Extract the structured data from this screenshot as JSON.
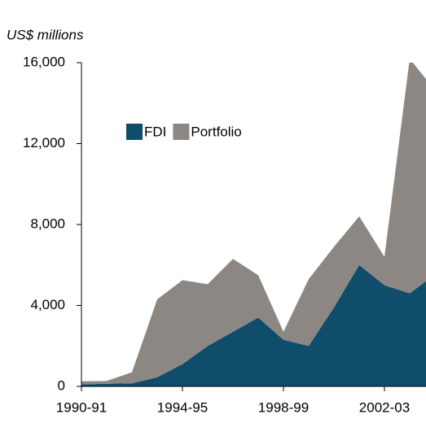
{
  "chart_data": {
    "type": "stacked_area",
    "subtitle": "US$ millions",
    "categories": [
      "1990-91",
      null,
      null,
      null,
      "1994-95",
      null,
      null,
      null,
      "1998-99",
      null,
      null,
      null,
      "2002-03",
      null,
      null
    ],
    "series": [
      {
        "name": "FDI",
        "color": "#0f4d6a",
        "values": [
          100,
          130,
          150,
          450,
          1100,
          2000,
          2700,
          3400,
          2300,
          2000,
          3900,
          6000,
          5000,
          4600,
          5530
        ]
      },
      {
        "name": "Portfolio",
        "color": "#8c8783",
        "values": [
          150,
          140,
          550,
          3850,
          4150,
          3050,
          3600,
          2100,
          400,
          3300,
          3000,
          2400,
          1400,
          11600,
          9100
        ]
      }
    ],
    "ylim": [
      0,
      16000
    ],
    "yticks": [
      0,
      {
        "value": 4000,
        "label": "4,000"
      },
      {
        "value": 8000,
        "label": "8,000"
      },
      {
        "value": 12000,
        "label": "12,000"
      },
      {
        "value": 16000,
        "label": "16,000"
      }
    ],
    "legend": "upper left"
  }
}
